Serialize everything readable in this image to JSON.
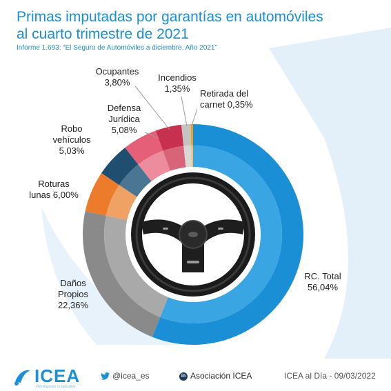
{
  "header": {
    "title_line1": "Primas imputadas por garantías en automóviles",
    "title_line2": "al cuarto trimestre de 2021",
    "subtitle": "Informe 1.693: “El Seguro de Automóviles a diciembre. Año 2021”"
  },
  "colors": {
    "brand": "#1a8fd6",
    "background_shape": "#d6e9f7"
  },
  "chart_data": {
    "type": "pie",
    "style": "donut",
    "unit": "%",
    "slices": [
      {
        "name_lines": [
          "RC. Total"
        ],
        "value_label": "56,04%",
        "value": 56.04,
        "color": "#1a8fd6",
        "inner_color": "#39a6e3"
      },
      {
        "name_lines": [
          "Daños",
          "Propios"
        ],
        "value_label": "22,36%",
        "value": 22.36,
        "color": "#8a8a8a",
        "inner_color": "#a9a9a9"
      },
      {
        "name_lines": [
          "Roturas",
          "lunas"
        ],
        "value_label": "6,00%",
        "value": 6.0,
        "color": "#ec7c2c",
        "inner_color": "#f0a264"
      },
      {
        "name_lines": [
          "Robo",
          "vehículos"
        ],
        "value_label": "5,03%",
        "value": 5.03,
        "color": "#1f4e70",
        "inner_color": "#4a7593"
      },
      {
        "name_lines": [
          "Defensa",
          "Jurídica"
        ],
        "value_label": "5,08%",
        "value": 5.08,
        "color": "#e45f77",
        "inner_color": "#ec8c9d"
      },
      {
        "name_lines": [
          "Ocupantes"
        ],
        "value_label": "3,80%",
        "value": 3.8,
        "color": "#c8304f",
        "inner_color": "#d86479"
      },
      {
        "name_lines": [
          "Incendios"
        ],
        "value_label": "1,35%",
        "value": 1.35,
        "color": "#c4c4c4",
        "inner_color": "#d8d8d8"
      },
      {
        "name_lines": [
          "Retirada del",
          "carnet"
        ],
        "value_label": "0,35%",
        "value": 0.35,
        "color": "#e6a52a",
        "inner_color": "#f0c46e"
      }
    ],
    "center_image": "steering-wheel"
  },
  "footer": {
    "logo_text": "ICEA",
    "logo_tagline": "Investigación Cooperativa",
    "twitter": "@icea_es",
    "twitter_icon": "twitter-bird-icon",
    "linkedin_icon_text": "in",
    "linkedin": "Asociación ICEA",
    "date_line": "ICEA al Día - 09/03/2022"
  }
}
